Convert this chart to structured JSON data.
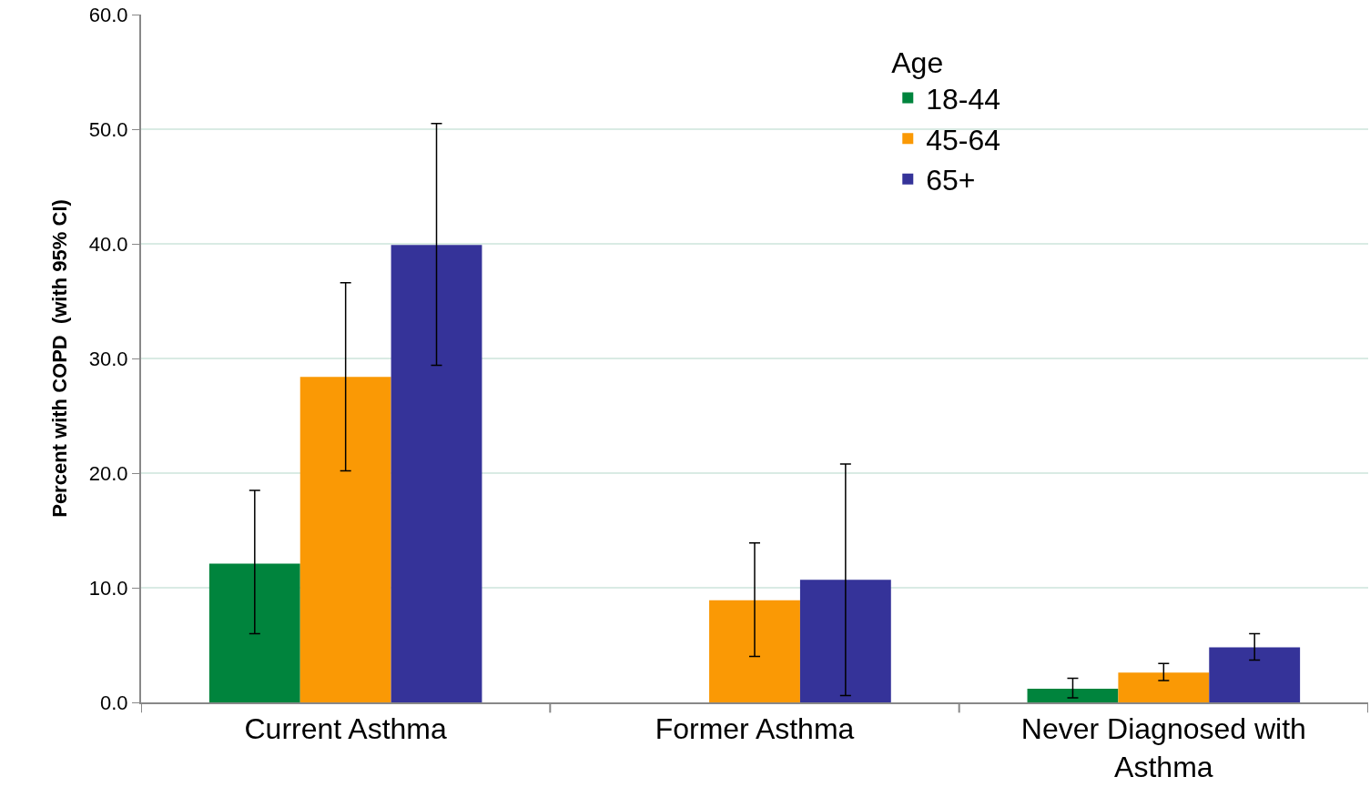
{
  "chart_data": {
    "type": "bar",
    "ylabel": "Percent with COPD  (with 95% CI)",
    "legend_title": "Age",
    "categories": [
      "Current Asthma",
      "Former Asthma",
      "Never Diagnosed with Asthma"
    ],
    "series": [
      {
        "name": "18-44",
        "color": "#00843d",
        "values": [
          12.1,
          null,
          1.2
        ],
        "errors": [
          [
            6.0,
            18.5
          ],
          null,
          [
            0.4,
            2.1
          ]
        ]
      },
      {
        "name": "45-64",
        "color": "#fa9905",
        "values": [
          28.4,
          8.9,
          2.6
        ],
        "errors": [
          [
            20.2,
            36.6
          ],
          [
            4.0,
            13.9
          ],
          [
            1.9,
            3.4
          ]
        ]
      },
      {
        "name": "65+",
        "color": "#353399",
        "values": [
          39.9,
          10.7,
          4.8
        ],
        "errors": [
          [
            29.4,
            50.5
          ],
          [
            0.6,
            20.8
          ],
          [
            3.7,
            6.0
          ]
        ]
      }
    ],
    "ylim": [
      0,
      60
    ],
    "yticks": [
      {
        "value": 0,
        "label": "0.0"
      },
      {
        "value": 10,
        "label": "10.0"
      },
      {
        "value": 20,
        "label": "20.0"
      },
      {
        "value": 30,
        "label": "30.0"
      },
      {
        "value": 40,
        "label": "40.0"
      },
      {
        "value": 50,
        "label": "50.0"
      },
      {
        "value": 60,
        "label": "60.0"
      }
    ],
    "grid": "y",
    "legend": "top right"
  }
}
